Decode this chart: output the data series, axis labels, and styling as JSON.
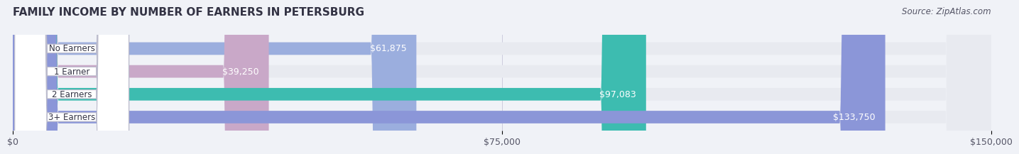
{
  "title": "FAMILY INCOME BY NUMBER OF EARNERS IN PETERSBURG",
  "source": "Source: ZipAtlas.com",
  "categories": [
    "No Earners",
    "1 Earner",
    "2 Earners",
    "3+ Earners"
  ],
  "values": [
    61875,
    39250,
    97083,
    133750
  ],
  "labels": [
    "$61,875",
    "$39,250",
    "$97,083",
    "$133,750"
  ],
  "bar_colors": [
    "#9baede",
    "#c9a8c8",
    "#3dbcb0",
    "#8b96d8"
  ],
  "bar_bg_color": "#e8eaf0",
  "xlim": [
    0,
    150000
  ],
  "xtick_labels": [
    "$0",
    "$75,000",
    "$150,000"
  ],
  "background_color": "#f0f2f7",
  "title_fontsize": 11,
  "source_fontsize": 8.5,
  "label_fontsize": 9,
  "tick_fontsize": 9,
  "bar_height": 0.55,
  "fig_width": 14.06,
  "fig_height": 2.33
}
